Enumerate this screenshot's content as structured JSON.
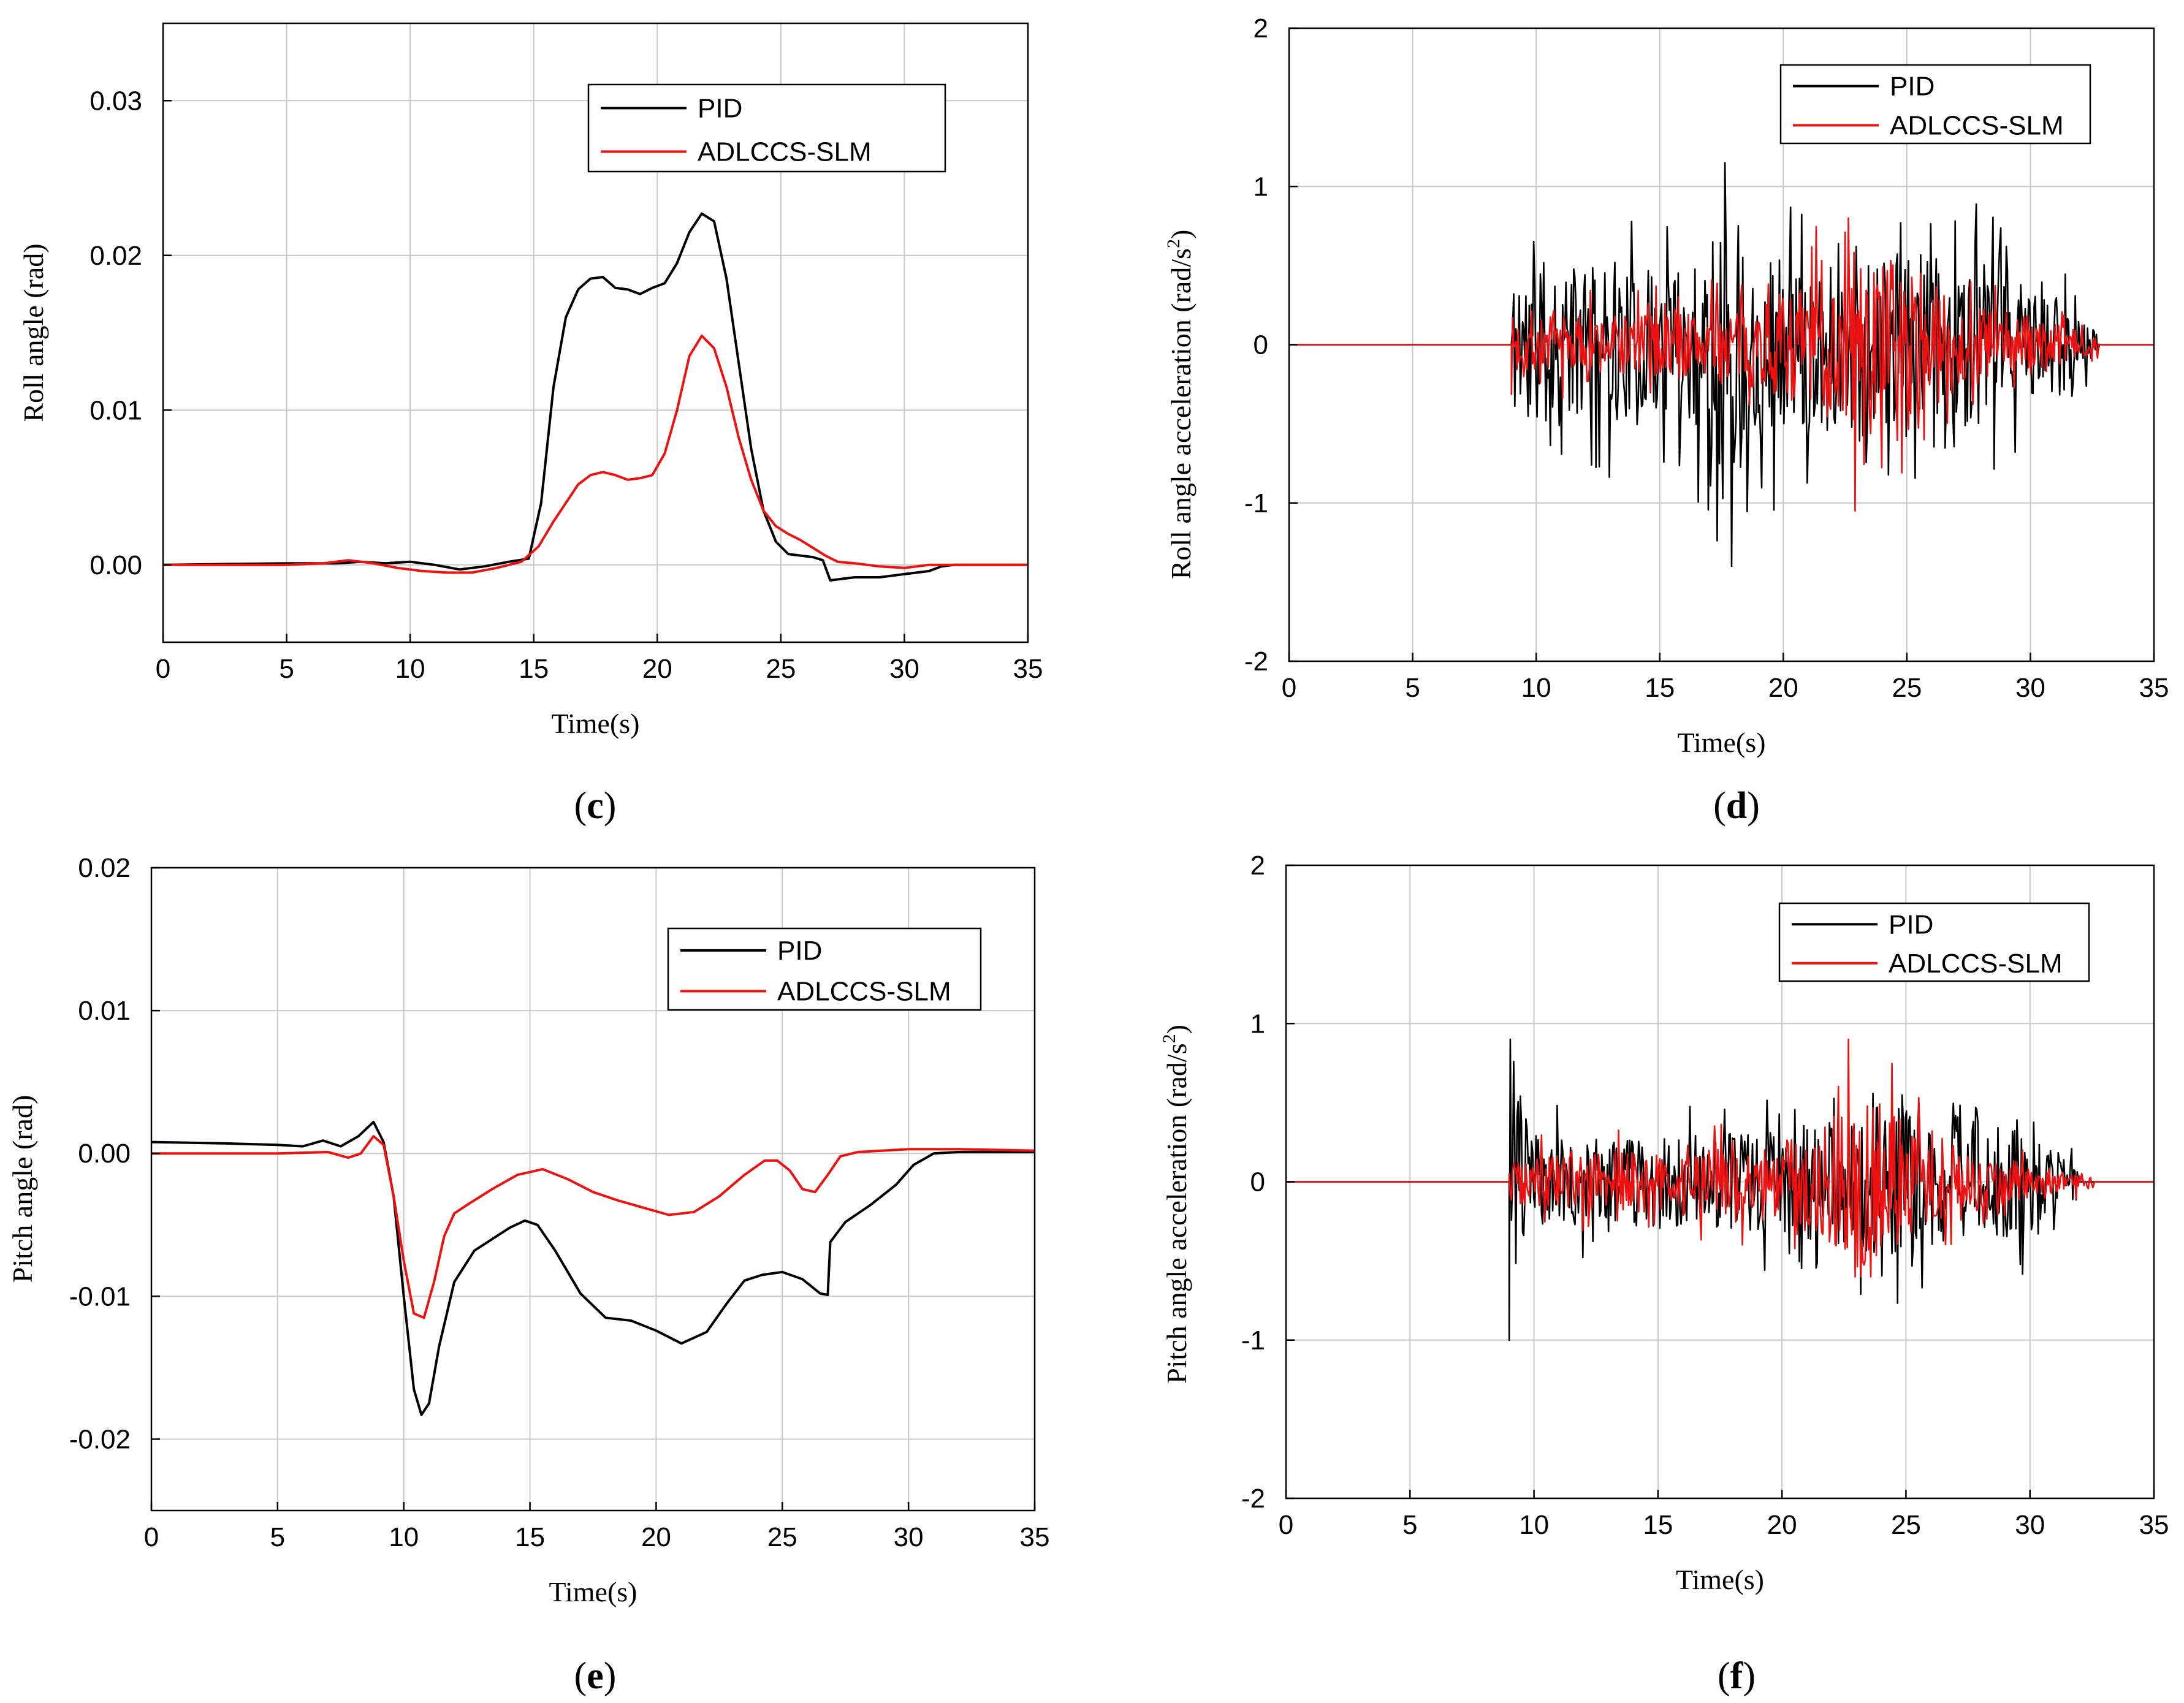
{
  "chart_data": [
    {
      "id": "c",
      "panel_letter": "c",
      "type": "line",
      "xlabel": "Time(s)",
      "ylabel": "Roll angle  (rad)",
      "xlim": [
        0,
        35
      ],
      "ylim": [
        -0.005,
        0.035
      ],
      "xticks": [
        0,
        5,
        10,
        15,
        20,
        25,
        30,
        35
      ],
      "xtick_labels": [
        "0",
        "5",
        "10",
        "15",
        "20",
        "25",
        "30",
        "35"
      ],
      "yticks": [
        0.0,
        0.01,
        0.02,
        0.03
      ],
      "ytick_labels": [
        "0.00",
        "0.01",
        "0.02",
        "0.03"
      ],
      "legend": {
        "position": "top-right",
        "entries": [
          "PID",
          "ADLCCS-SLM"
        ]
      },
      "series": [
        {
          "name": "PID",
          "color": "#000000",
          "style": "smooth",
          "x": [
            0,
            5,
            7,
            8,
            9,
            10,
            11,
            12,
            13,
            14,
            14.8,
            15.3,
            15.8,
            16.3,
            16.8,
            17.3,
            17.8,
            18.3,
            18.8,
            19.3,
            19.8,
            20.3,
            20.8,
            21.3,
            21.8,
            22.3,
            22.8,
            23.3,
            23.8,
            24.3,
            24.8,
            25.3,
            25.8,
            26.3,
            26.7,
            27.0,
            27.5,
            28,
            29,
            30,
            31,
            31.5,
            32,
            33,
            35
          ],
          "y": [
            0.0,
            0.0001,
            0.0001,
            0.0002,
            0.0001,
            0.0002,
            0.0,
            -0.0003,
            -0.0001,
            0.0002,
            0.0004,
            0.004,
            0.0115,
            0.016,
            0.0178,
            0.0185,
            0.0186,
            0.0179,
            0.0178,
            0.0175,
            0.0179,
            0.0182,
            0.0195,
            0.0215,
            0.0227,
            0.0222,
            0.0185,
            0.013,
            0.0075,
            0.0035,
            0.0015,
            0.0007,
            0.0006,
            0.0005,
            0.0003,
            -0.001,
            -0.0009,
            -0.0008,
            -0.0008,
            -0.0006,
            -0.0004,
            -0.0001,
            0.0,
            0.0,
            0.0
          ]
        },
        {
          "name": "ADLCCS-SLM",
          "color": "#ee1111",
          "style": "smooth",
          "x": [
            0,
            5,
            6.5,
            7.5,
            8.5,
            9.5,
            10.5,
            11.5,
            12.5,
            13.5,
            14.5,
            15.2,
            15.8,
            16.3,
            16.8,
            17.3,
            17.8,
            18.3,
            18.8,
            19.3,
            19.8,
            20.3,
            20.8,
            21.3,
            21.8,
            22.3,
            22.8,
            23.3,
            23.8,
            24.3,
            24.8,
            25.3,
            25.8,
            26.3,
            26.8,
            27.3,
            28,
            29,
            30,
            31,
            33,
            35
          ],
          "y": [
            0.0,
            0.0,
            0.0001,
            0.0003,
            0.0001,
            -0.0002,
            -0.0004,
            -0.0005,
            -0.0005,
            -0.0002,
            0.0002,
            0.0012,
            0.0028,
            0.004,
            0.0052,
            0.0058,
            0.006,
            0.0058,
            0.0055,
            0.0056,
            0.0058,
            0.0072,
            0.01,
            0.0135,
            0.0148,
            0.014,
            0.0115,
            0.0082,
            0.0055,
            0.0035,
            0.0025,
            0.002,
            0.0016,
            0.0011,
            0.0006,
            0.0002,
            0.0001,
            -0.0001,
            -0.0002,
            0.0,
            0.0,
            0.0
          ]
        }
      ]
    },
    {
      "id": "d",
      "panel_letter": "d",
      "type": "line",
      "xlabel": "Time(s)",
      "ylabel": "Roll angle acceleration (rad/s",
      "ylabel_sup": "2",
      "ylabel_end": ")",
      "xlim": [
        0,
        35
      ],
      "ylim": [
        -2,
        2
      ],
      "xticks": [
        0,
        5,
        10,
        15,
        20,
        25,
        30,
        35
      ],
      "xtick_labels": [
        "0",
        "5",
        "10",
        "15",
        "20",
        "25",
        "30",
        "35"
      ],
      "yticks": [
        -2,
        -1,
        0,
        1,
        2
      ],
      "ytick_labels": [
        "-2",
        "-1",
        "0",
        "1",
        "2"
      ],
      "legend": {
        "position": "top-right",
        "entries": [
          "PID",
          "ADLCCS-SLM"
        ]
      },
      "series": [
        {
          "name": "PID",
          "color": "#000000",
          "style": "noise",
          "seed": 11,
          "start": 9.0,
          "end": 32.8,
          "env_x": [
            9.0,
            10,
            12,
            14,
            16,
            17,
            18,
            19,
            21,
            23,
            25,
            27,
            29,
            31,
            32,
            32.8
          ],
          "env_y": [
            0.5,
            0.6,
            0.55,
            0.5,
            0.6,
            0.8,
            0.95,
            0.7,
            0.55,
            0.6,
            0.65,
            0.6,
            0.55,
            0.4,
            0.2,
            0.1
          ],
          "max_value": 1.15,
          "min_value": -1.4
        },
        {
          "name": "ADLCCS-SLM",
          "color": "#ee1111",
          "style": "noise",
          "seed": 7,
          "start": 9.0,
          "end": 32.8,
          "env_x": [
            9.0,
            12,
            16,
            19,
            21,
            23,
            25,
            27,
            29,
            31,
            32.8
          ],
          "env_y": [
            0.2,
            0.22,
            0.25,
            0.3,
            0.45,
            0.6,
            0.5,
            0.35,
            0.25,
            0.15,
            0.05
          ],
          "max_value": 0.8,
          "min_value": -1.05
        }
      ]
    },
    {
      "id": "e",
      "panel_letter": "e",
      "type": "line",
      "xlabel": "Time(s)",
      "ylabel": "Pitch angle  (rad)",
      "xlim": [
        0,
        35
      ],
      "ylim": [
        -0.025,
        0.02
      ],
      "xticks": [
        0,
        5,
        10,
        15,
        20,
        25,
        30,
        35
      ],
      "xtick_labels": [
        "0",
        "5",
        "10",
        "15",
        "20",
        "25",
        "30",
        "35"
      ],
      "yticks": [
        -0.02,
        -0.01,
        0.0,
        0.01,
        0.02
      ],
      "ytick_labels": [
        "-0.02",
        "-0.01",
        "0.00",
        "0.01",
        "0.02"
      ],
      "legend": {
        "position": "top-right",
        "entries": [
          "PID",
          "ADLCCS-SLM"
        ]
      },
      "series": [
        {
          "name": "PID",
          "color": "#000000",
          "style": "smooth",
          "x": [
            0,
            3,
            5,
            6,
            6.8,
            7.5,
            8.2,
            8.8,
            9.2,
            9.6,
            10.0,
            10.4,
            10.7,
            11.0,
            11.4,
            12.0,
            12.8,
            13.5,
            14.2,
            14.8,
            15.3,
            16,
            17,
            18,
            19,
            20,
            21,
            22,
            22.8,
            23.5,
            24.2,
            25,
            25.8,
            26.5,
            26.8,
            26.9,
            27.5,
            28.5,
            29.5,
            30.2,
            31,
            32,
            35
          ],
          "y": [
            0.0008,
            0.0007,
            0.0006,
            0.0005,
            0.0009,
            0.0005,
            0.0012,
            0.0022,
            0.0008,
            -0.003,
            -0.01,
            -0.0165,
            -0.0183,
            -0.0175,
            -0.0135,
            -0.009,
            -0.0068,
            -0.006,
            -0.0052,
            -0.0047,
            -0.005,
            -0.0068,
            -0.0098,
            -0.0115,
            -0.0117,
            -0.0124,
            -0.0133,
            -0.0125,
            -0.0105,
            -0.0089,
            -0.0085,
            -0.0083,
            -0.0088,
            -0.0098,
            -0.0099,
            -0.0062,
            -0.0048,
            -0.0036,
            -0.0022,
            -0.0008,
            0.0,
            0.0001,
            0.0001
          ]
        },
        {
          "name": "ADLCCS-SLM",
          "color": "#ee1111",
          "style": "smooth",
          "x": [
            0,
            5,
            7,
            7.8,
            8.3,
            8.8,
            9.2,
            9.6,
            10.0,
            10.4,
            10.8,
            11.2,
            11.6,
            12.0,
            12.6,
            13.5,
            14.5,
            15.5,
            16.5,
            17.5,
            18.5,
            19.5,
            20.5,
            21.5,
            22.5,
            23.5,
            24.3,
            24.8,
            25.3,
            25.8,
            26.3,
            26.8,
            27.3,
            28,
            29,
            30,
            32,
            35
          ],
          "y": [
            0.0,
            0.0,
            0.0001,
            -0.0003,
            0.0,
            0.0012,
            0.0006,
            -0.003,
            -0.0075,
            -0.0112,
            -0.0115,
            -0.009,
            -0.0058,
            -0.0042,
            -0.0035,
            -0.0025,
            -0.0015,
            -0.0011,
            -0.0018,
            -0.0027,
            -0.0033,
            -0.0038,
            -0.0043,
            -0.0041,
            -0.003,
            -0.0015,
            -0.0005,
            -0.0005,
            -0.0012,
            -0.0025,
            -0.0027,
            -0.0015,
            -0.0002,
            0.0001,
            0.0002,
            0.0003,
            0.0003,
            0.0002
          ]
        }
      ]
    },
    {
      "id": "f",
      "panel_letter": "f",
      "type": "line",
      "xlabel": "Time(s)",
      "ylabel": "Pitch angle acceleration (rad/s",
      "ylabel_sup": "2",
      "ylabel_end": ")",
      "xlim": [
        0,
        35
      ],
      "ylim": [
        -2,
        2
      ],
      "xticks": [
        0,
        5,
        10,
        15,
        20,
        25,
        30,
        35
      ],
      "xtick_labels": [
        "0",
        "5",
        "10",
        "15",
        "20",
        "25",
        "30",
        "35"
      ],
      "yticks": [
        -2,
        -1,
        0,
        1,
        2
      ],
      "ytick_labels": [
        "-2",
        "-1",
        "0",
        "1",
        "2"
      ],
      "legend": {
        "position": "top-right",
        "entries": [
          "PID",
          "ADLCCS-SLM"
        ]
      },
      "series": [
        {
          "name": "PID",
          "color": "#000000",
          "style": "noise",
          "seed": 23,
          "start": 9.0,
          "end": 32.0,
          "env_x": [
            9.0,
            9.5,
            10,
            14,
            18,
            20,
            22,
            24,
            26,
            28,
            30,
            31,
            32
          ],
          "env_y": [
            0.8,
            0.6,
            0.3,
            0.32,
            0.35,
            0.35,
            0.45,
            0.55,
            0.5,
            0.45,
            0.35,
            0.25,
            0.1
          ],
          "max_value": 0.9,
          "min_value": -1.0
        },
        {
          "name": "ADLCCS-SLM",
          "color": "#ee1111",
          "style": "noise",
          "seed": 5,
          "start": 9.0,
          "end": 32.6,
          "env_x": [
            9.0,
            9.6,
            12,
            16,
            20,
            22,
            23,
            24,
            26,
            28,
            30,
            32.6
          ],
          "env_y": [
            0.15,
            0.18,
            0.2,
            0.22,
            0.28,
            0.45,
            0.6,
            0.55,
            0.3,
            0.2,
            0.12,
            0.05
          ],
          "max_value": 0.9,
          "min_value": -0.6
        }
      ]
    }
  ]
}
